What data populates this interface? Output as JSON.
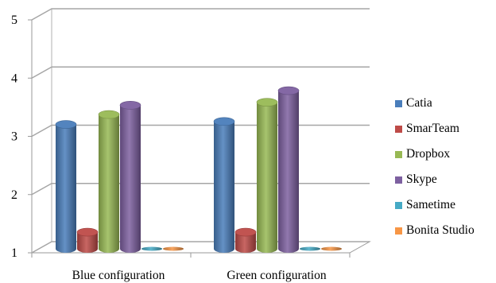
{
  "chart_data": {
    "type": "bar",
    "style": "3d-cylinder",
    "title": "",
    "xlabel": "",
    "ylabel": "",
    "ylim": [
      1,
      5
    ],
    "yticks": [
      1,
      2,
      3,
      4,
      5
    ],
    "grid": true,
    "legend_position": "right",
    "categories": [
      "Blue configuration",
      "Green configuration"
    ],
    "series": [
      {
        "name": "Catia",
        "color": "#4a7ebb",
        "values": [
          3.15,
          3.2
        ]
      },
      {
        "name": "SmarTeam",
        "color": "#be4b48",
        "values": [
          1.3,
          1.3
        ]
      },
      {
        "name": "Dropbox",
        "color": "#98b954",
        "values": [
          3.32,
          3.53
        ]
      },
      {
        "name": "Skype",
        "color": "#7d60a0",
        "values": [
          3.48,
          3.73
        ]
      },
      {
        "name": "Sametime",
        "color": "#46aac5",
        "values": [
          1.0,
          1.0
        ]
      },
      {
        "name": "Bonita Studio",
        "color": "#f79646",
        "values": [
          1.0,
          1.0
        ]
      }
    ]
  }
}
